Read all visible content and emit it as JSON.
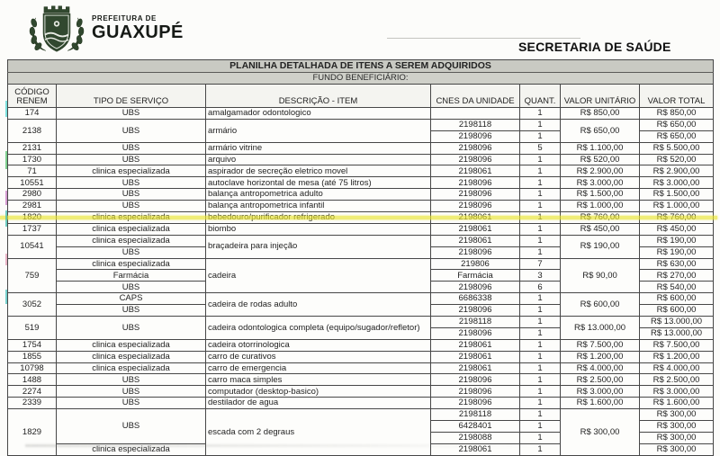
{
  "header": {
    "logo_small": "PREFEITURA DE",
    "logo_large": "GUAXUPÉ",
    "department": "SECRETARIA DE SAÚDE"
  },
  "colors": {
    "logo_green": "#31482f",
    "band_gray": "#c9cac3",
    "highlight_yellow": "#e9e530"
  },
  "table": {
    "title": "PLANILHA DETALHADA DE ITENS A SEREM ADQUIRIDOS",
    "subtitle": "FUNDO BENEFICIÁRIO:",
    "columns": [
      "CÓDIGO\nRENEM",
      "TIPO DE SERVIÇO",
      "DESCRIÇÃO - ITEM",
      "CNES DA UNIDADE",
      "QUANT.",
      "VALOR UNITÁRIO",
      "VALOR TOTAL"
    ],
    "items": [
      {
        "codigo": "174",
        "descricao": "amalgamador odontologico",
        "valor_unitario": "R$ 850,00",
        "tipos": [
          {
            "label": "UBS",
            "span": 1
          }
        ],
        "rows": [
          {
            "cnes": "",
            "quant": "1",
            "valor_total": "R$ 850,00"
          }
        ]
      },
      {
        "codigo": "2138",
        "descricao": "armário",
        "valor_unitario": "R$ 650,00",
        "tipos": [
          {
            "label": "UBS",
            "span": 2
          }
        ],
        "rows": [
          {
            "cnes": "2198118",
            "quant": "1",
            "valor_total": "R$ 650,00"
          },
          {
            "cnes": "2198096",
            "quant": "1",
            "valor_total": "R$ 650,00"
          }
        ]
      },
      {
        "codigo": "2131",
        "descricao": "armário vitrine",
        "valor_unitario": "R$ 1.100,00",
        "tipos": [
          {
            "label": "UBS",
            "span": 1
          }
        ],
        "rows": [
          {
            "cnes": "2198096",
            "quant": "5",
            "valor_total": "R$ 5.500,00"
          }
        ]
      },
      {
        "codigo": "1730",
        "descricao": "arquivo",
        "valor_unitario": "R$ 520,00",
        "tipos": [
          {
            "label": "UBS",
            "span": 1
          }
        ],
        "rows": [
          {
            "cnes": "2198096",
            "quant": "1",
            "valor_total": "R$ 520,00"
          }
        ]
      },
      {
        "codigo": "71",
        "descricao": "aspirador de secreção eletrico movel",
        "valor_unitario": "R$ 2.900,00",
        "tipos": [
          {
            "label": "clinica especializada",
            "span": 1
          }
        ],
        "rows": [
          {
            "cnes": "2198061",
            "quant": "1",
            "valor_total": "R$ 2.900,00"
          }
        ]
      },
      {
        "codigo": "10551",
        "descricao": "autoclave horizontal de mesa (até 75 litros)",
        "valor_unitario": "R$ 3.000,00",
        "tipos": [
          {
            "label": "UBS",
            "span": 1
          }
        ],
        "rows": [
          {
            "cnes": "2198096",
            "quant": "1",
            "valor_total": "R$ 3.000,00"
          }
        ]
      },
      {
        "codigo": "2980",
        "descricao": "balança antropometrica adulto",
        "valor_unitario": "R$ 1.500,00",
        "tipos": [
          {
            "label": "UBS",
            "span": 1
          }
        ],
        "rows": [
          {
            "cnes": "2198096",
            "quant": "1",
            "valor_total": "R$ 1.500,00"
          }
        ]
      },
      {
        "codigo": "2981",
        "descricao": "balança antropometrica infantil",
        "valor_unitario": "R$ 1.000,00",
        "tipos": [
          {
            "label": "UBS",
            "span": 1
          }
        ],
        "rows": [
          {
            "cnes": "2198096",
            "quant": "1",
            "valor_total": "R$ 1.000,00"
          }
        ]
      },
      {
        "codigo": "1820",
        "descricao": "bebedouro/purificador refrigerado",
        "valor_unitario": "R$ 760,00",
        "tipos": [
          {
            "label": "clinica especializada",
            "span": 1
          }
        ],
        "rows": [
          {
            "cnes": "2198061",
            "quant": "1",
            "valor_total": "R$ 760,00"
          }
        ]
      },
      {
        "codigo": "1737",
        "descricao": "biombo",
        "valor_unitario": "R$ 450,00",
        "tipos": [
          {
            "label": "clinica especializada",
            "span": 1
          }
        ],
        "rows": [
          {
            "cnes": "2198061",
            "quant": "1",
            "valor_total": "R$ 450,00"
          }
        ]
      },
      {
        "codigo": "10541",
        "descricao": "braçadeira para injeção",
        "valor_unitario": "R$ 190,00",
        "tipos": [
          {
            "label": "clinica especializada",
            "span": 1
          },
          {
            "label": "UBS",
            "span": 1
          }
        ],
        "rows": [
          {
            "cnes": "2198061",
            "quant": "1",
            "valor_total": "R$ 190,00"
          },
          {
            "cnes": "2198096",
            "quant": "1",
            "valor_total": "R$ 190,00"
          }
        ]
      },
      {
        "codigo": "759",
        "descricao": "cadeira",
        "valor_unitario": "R$ 90,00",
        "tipos": [
          {
            "label": "clinica especializada",
            "span": 1
          },
          {
            "label": "Farmácia",
            "span": 1
          },
          {
            "label": "UBS",
            "span": 1
          }
        ],
        "rows": [
          {
            "cnes": "219806",
            "quant": "7",
            "valor_total": "R$ 630,00"
          },
          {
            "cnes": "Farmácia",
            "quant": "3",
            "valor_total": "R$ 270,00"
          },
          {
            "cnes": "2198096",
            "quant": "6",
            "valor_total": "R$ 540,00"
          }
        ]
      },
      {
        "codigo": "3052",
        "descricao": "cadeira de rodas adulto",
        "valor_unitario": "R$ 600,00",
        "tipos": [
          {
            "label": "CAPS",
            "span": 1
          },
          {
            "label": "UBS",
            "span": 1
          }
        ],
        "rows": [
          {
            "cnes": "6686338",
            "quant": "1",
            "valor_total": "R$ 600,00"
          },
          {
            "cnes": "2198096",
            "quant": "1",
            "valor_total": "R$ 600,00"
          }
        ]
      },
      {
        "codigo": "519",
        "descricao": "cadeira odontologica completa (equipo/sugador/refletor)",
        "valor_unitario": "R$ 13.000,00",
        "tipos": [
          {
            "label": "UBS",
            "span": 2
          }
        ],
        "rows": [
          {
            "cnes": "2198118",
            "quant": "1",
            "valor_total": "R$ 13.000,00"
          },
          {
            "cnes": "2198096",
            "quant": "1",
            "valor_total": "R$ 13.000,00"
          }
        ]
      },
      {
        "codigo": "1754",
        "descricao": "cadeira otorrinologica",
        "valor_unitario": "R$ 7.500,00",
        "tipos": [
          {
            "label": "clinica especializada",
            "span": 1
          }
        ],
        "rows": [
          {
            "cnes": "2198061",
            "quant": "1",
            "valor_total": "R$ 7.500,00"
          }
        ]
      },
      {
        "codigo": "1855",
        "descricao": "carro de curativos",
        "valor_unitario": "R$ 1.200,00",
        "tipos": [
          {
            "label": "clinica especializada",
            "span": 1
          }
        ],
        "rows": [
          {
            "cnes": "2198061",
            "quant": "1",
            "valor_total": "R$ 1.200,00"
          }
        ]
      },
      {
        "codigo": "10798",
        "descricao": "carro de emergencia",
        "valor_unitario": "R$ 4.000,00",
        "tipos": [
          {
            "label": "clinica especializada",
            "span": 1
          }
        ],
        "rows": [
          {
            "cnes": "2198061",
            "quant": "1",
            "valor_total": "R$ 4.000,00"
          }
        ]
      },
      {
        "codigo": "1488",
        "descricao": "carro maca simples",
        "valor_unitario": "R$ 2.500,00",
        "tipos": [
          {
            "label": "UBS",
            "span": 1
          }
        ],
        "rows": [
          {
            "cnes": "2198096",
            "quant": "1",
            "valor_total": "R$ 2.500,00"
          }
        ]
      },
      {
        "codigo": "2274",
        "descricao": "computador  (desktop-basico)",
        "valor_unitario": "R$ 3.000,00",
        "tipos": [
          {
            "label": "UBS",
            "span": 1
          }
        ],
        "rows": [
          {
            "cnes": "2198096",
            "quant": "1",
            "valor_total": "R$ 3.000,00"
          }
        ]
      },
      {
        "codigo": "2339",
        "descricao": "destilador de agua",
        "valor_unitario": "R$ 1.600,00",
        "tipos": [
          {
            "label": "UBS",
            "span": 1
          }
        ],
        "rows": [
          {
            "cnes": "2198096",
            "quant": "1",
            "valor_total": "R$ 1.600,00"
          }
        ]
      },
      {
        "codigo": "1829",
        "descricao": "escada com 2 degraus",
        "valor_unitario": "R$ 300,00",
        "tipos": [
          {
            "label": "UBS",
            "span": 3
          },
          {
            "label": "clinica especializada",
            "span": 1
          }
        ],
        "rows": [
          {
            "cnes": "2198118",
            "quant": "1",
            "valor_total": "R$ 300,00"
          },
          {
            "cnes": "6428401",
            "quant": "1",
            "valor_total": "R$ 300,00"
          },
          {
            "cnes": "2198088",
            "quant": "1",
            "valor_total": "R$ 300,00"
          },
          {
            "cnes": "2198061",
            "quant": "1",
            "valor_total": "R$ 300,00"
          }
        ]
      }
    ]
  }
}
